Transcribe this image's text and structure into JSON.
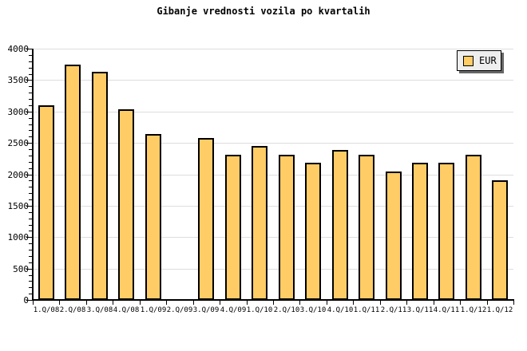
{
  "title": "Gibanje vrednosti vozila po kvartalih",
  "legend": {
    "label": "EUR"
  },
  "colors": {
    "background": "#FFFFFF",
    "bar_fill": "#FFCC66",
    "bar_border": "#000000",
    "grid_line": "#DDDDDD",
    "axis": "#000000",
    "legend_bg": "#EEEEEE",
    "legend_border": "#000000",
    "legend_shadow": "#666666"
  },
  "chart_data": {
    "type": "bar",
    "title": "Gibanje vrednosti vozila po kvartalih",
    "categories": [
      "1.Q/08",
      "2.Q/08",
      "3.Q/08",
      "4.Q/08",
      "1.Q/09",
      "2.Q/09",
      "3.Q/09",
      "4.Q/09",
      "1.Q/10",
      "2.Q/10",
      "3.Q/10",
      "4.Q/10",
      "1.Q/11",
      "2.Q/11",
      "3.Q/11",
      "4.Q/11",
      "1.Q/12",
      "1.Q/12"
    ],
    "series": [
      {
        "name": "EUR",
        "values": [
          3100,
          3750,
          3630,
          3030,
          2640,
          null,
          2580,
          2310,
          2450,
          2310,
          2190,
          2390,
          2310,
          2050,
          2180,
          2180,
          2310,
          1910
        ]
      }
    ],
    "missing_bars": [
      "2.Q/09"
    ],
    "xlabel": "",
    "ylabel": "",
    "ylim": [
      0,
      4000
    ],
    "y_major_tick": 500,
    "y_minor_tick": 100,
    "y_tick_labels": [
      "0",
      "500",
      "1000",
      "1500",
      "2000",
      "2500",
      "3000",
      "3500",
      "4000"
    ],
    "grid": "horizontal-major",
    "legend_position": "top-right"
  }
}
